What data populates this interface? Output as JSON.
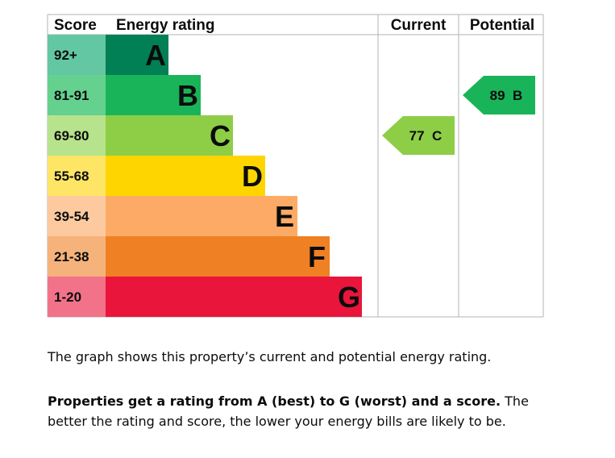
{
  "chart_data": {
    "type": "bar",
    "headers": {
      "score": "Score",
      "rating": "Energy rating",
      "current": "Current",
      "potential": "Potential"
    },
    "bands": [
      {
        "letter": "A",
        "range": "92+",
        "color": "#008054",
        "score_color": "#64c7a4"
      },
      {
        "letter": "B",
        "range": "81-91",
        "color": "#19b459",
        "score_color": "#65d18e"
      },
      {
        "letter": "C",
        "range": "69-80",
        "color": "#8dce46",
        "score_color": "#b6e38b"
      },
      {
        "letter": "D",
        "range": "55-68",
        "color": "#ffd500",
        "score_color": "#ffe566"
      },
      {
        "letter": "E",
        "range": "39-54",
        "color": "#fcaa65",
        "score_color": "#fdcaa0"
      },
      {
        "letter": "F",
        "range": "21-38",
        "color": "#ef8023",
        "score_color": "#f5b37b"
      },
      {
        "letter": "G",
        "range": "1-20",
        "color": "#e9153b",
        "score_color": "#f2728a"
      }
    ],
    "current": {
      "value": 77,
      "band": "C",
      "label": "77 C",
      "color": "#8dce46"
    },
    "potential": {
      "value": 89,
      "band": "B",
      "label": "89 B",
      "color": "#19b459"
    }
  },
  "description": {
    "line1": "The graph shows this property’s current and potential energy rating.",
    "bold": "Properties get a rating from A (best) to G (worst) and a score.",
    "rest": " The better the rating and score, the lower your energy bills are likely to be."
  }
}
